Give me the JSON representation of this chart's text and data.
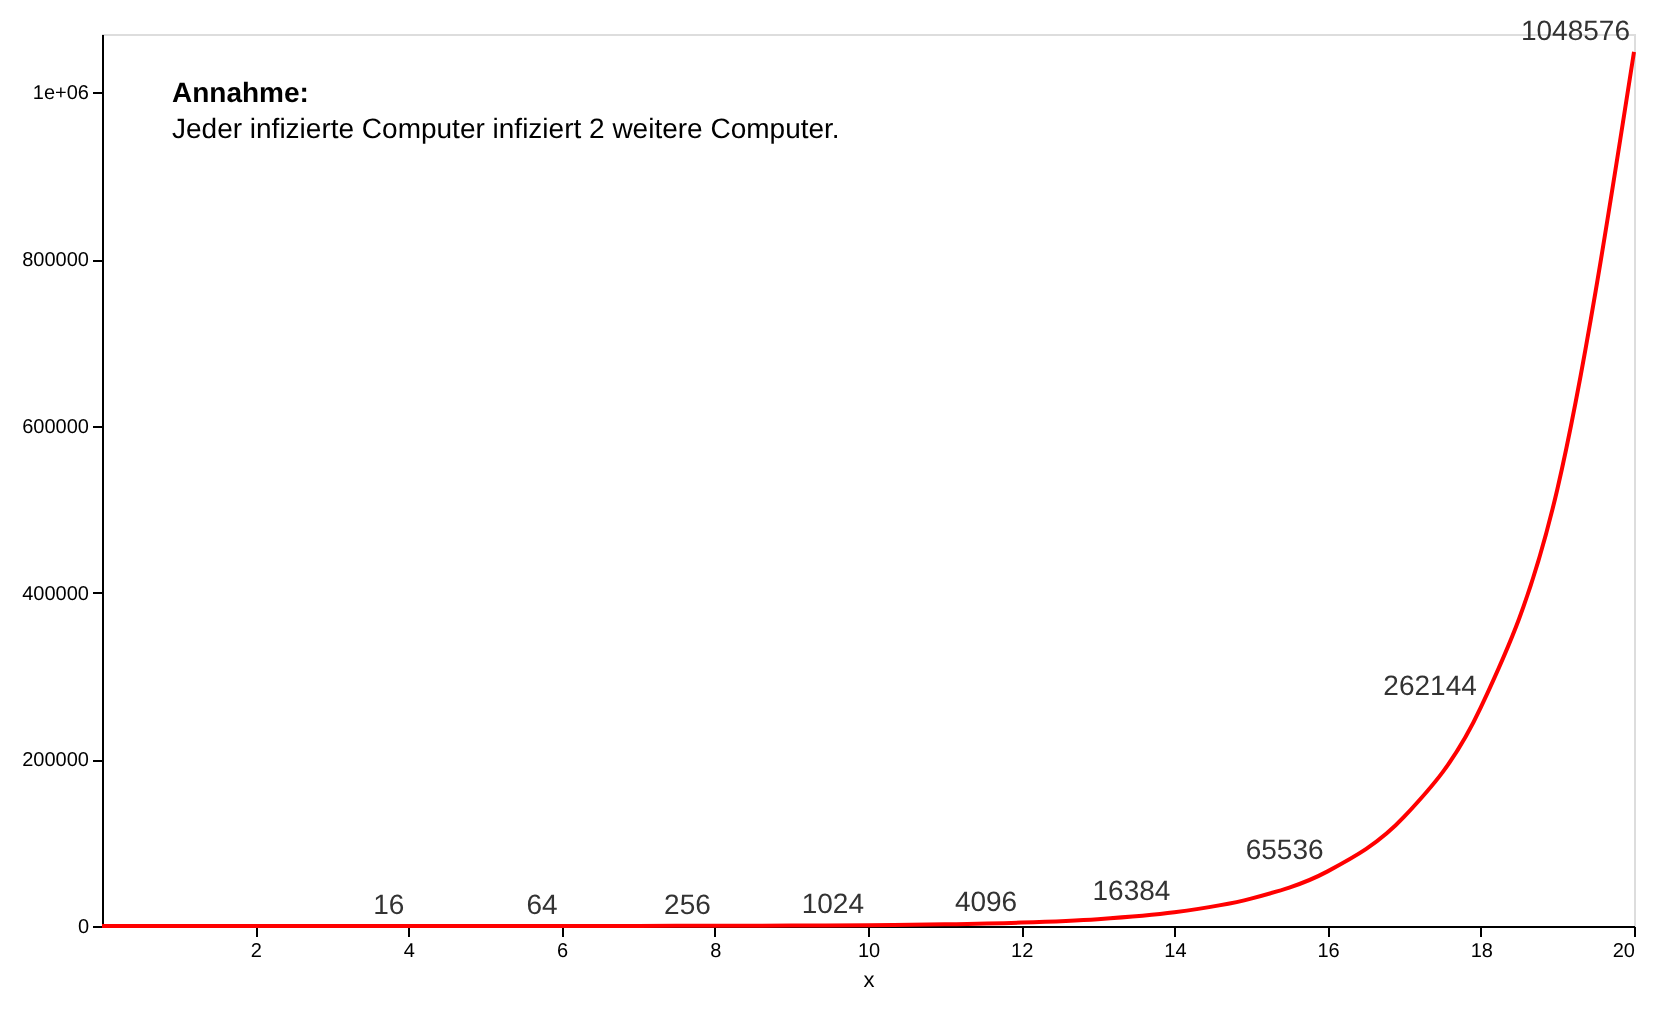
{
  "chart_data": {
    "type": "line",
    "xlabel": "x",
    "x": [
      0,
      1,
      2,
      3,
      4,
      5,
      6,
      7,
      8,
      9,
      10,
      11,
      12,
      13,
      14,
      15,
      16,
      17,
      18,
      19,
      20
    ],
    "series": [
      {
        "color": "#ff0000",
        "values": [
          1,
          2,
          4,
          8,
          16,
          32,
          64,
          128,
          256,
          512,
          1024,
          2048,
          4096,
          8192,
          16384,
          32768,
          65536,
          131072,
          262144,
          524288,
          1048576
        ],
        "value_labels": [
          null,
          null,
          null,
          null,
          "16",
          null,
          "64",
          null,
          "256",
          null,
          "1024",
          null,
          "4096",
          null,
          "16384",
          null,
          "65536",
          null,
          "262144",
          null,
          "1048576"
        ]
      }
    ],
    "xlim": [
      0,
      20
    ],
    "xticks": [
      2,
      4,
      6,
      8,
      10,
      12,
      14,
      16,
      18,
      20
    ],
    "ylim": [
      0,
      1070000
    ],
    "yticks": [
      0,
      200000,
      400000,
      600000,
      800000,
      {
        "value": 1000000,
        "label": "1e+06"
      }
    ],
    "grid": false,
    "marker": "none",
    "line_style": "solid",
    "annotations": [
      "Annahme:",
      "Jeder infizierte Computer infiziert 2 weitere Computer."
    ]
  }
}
